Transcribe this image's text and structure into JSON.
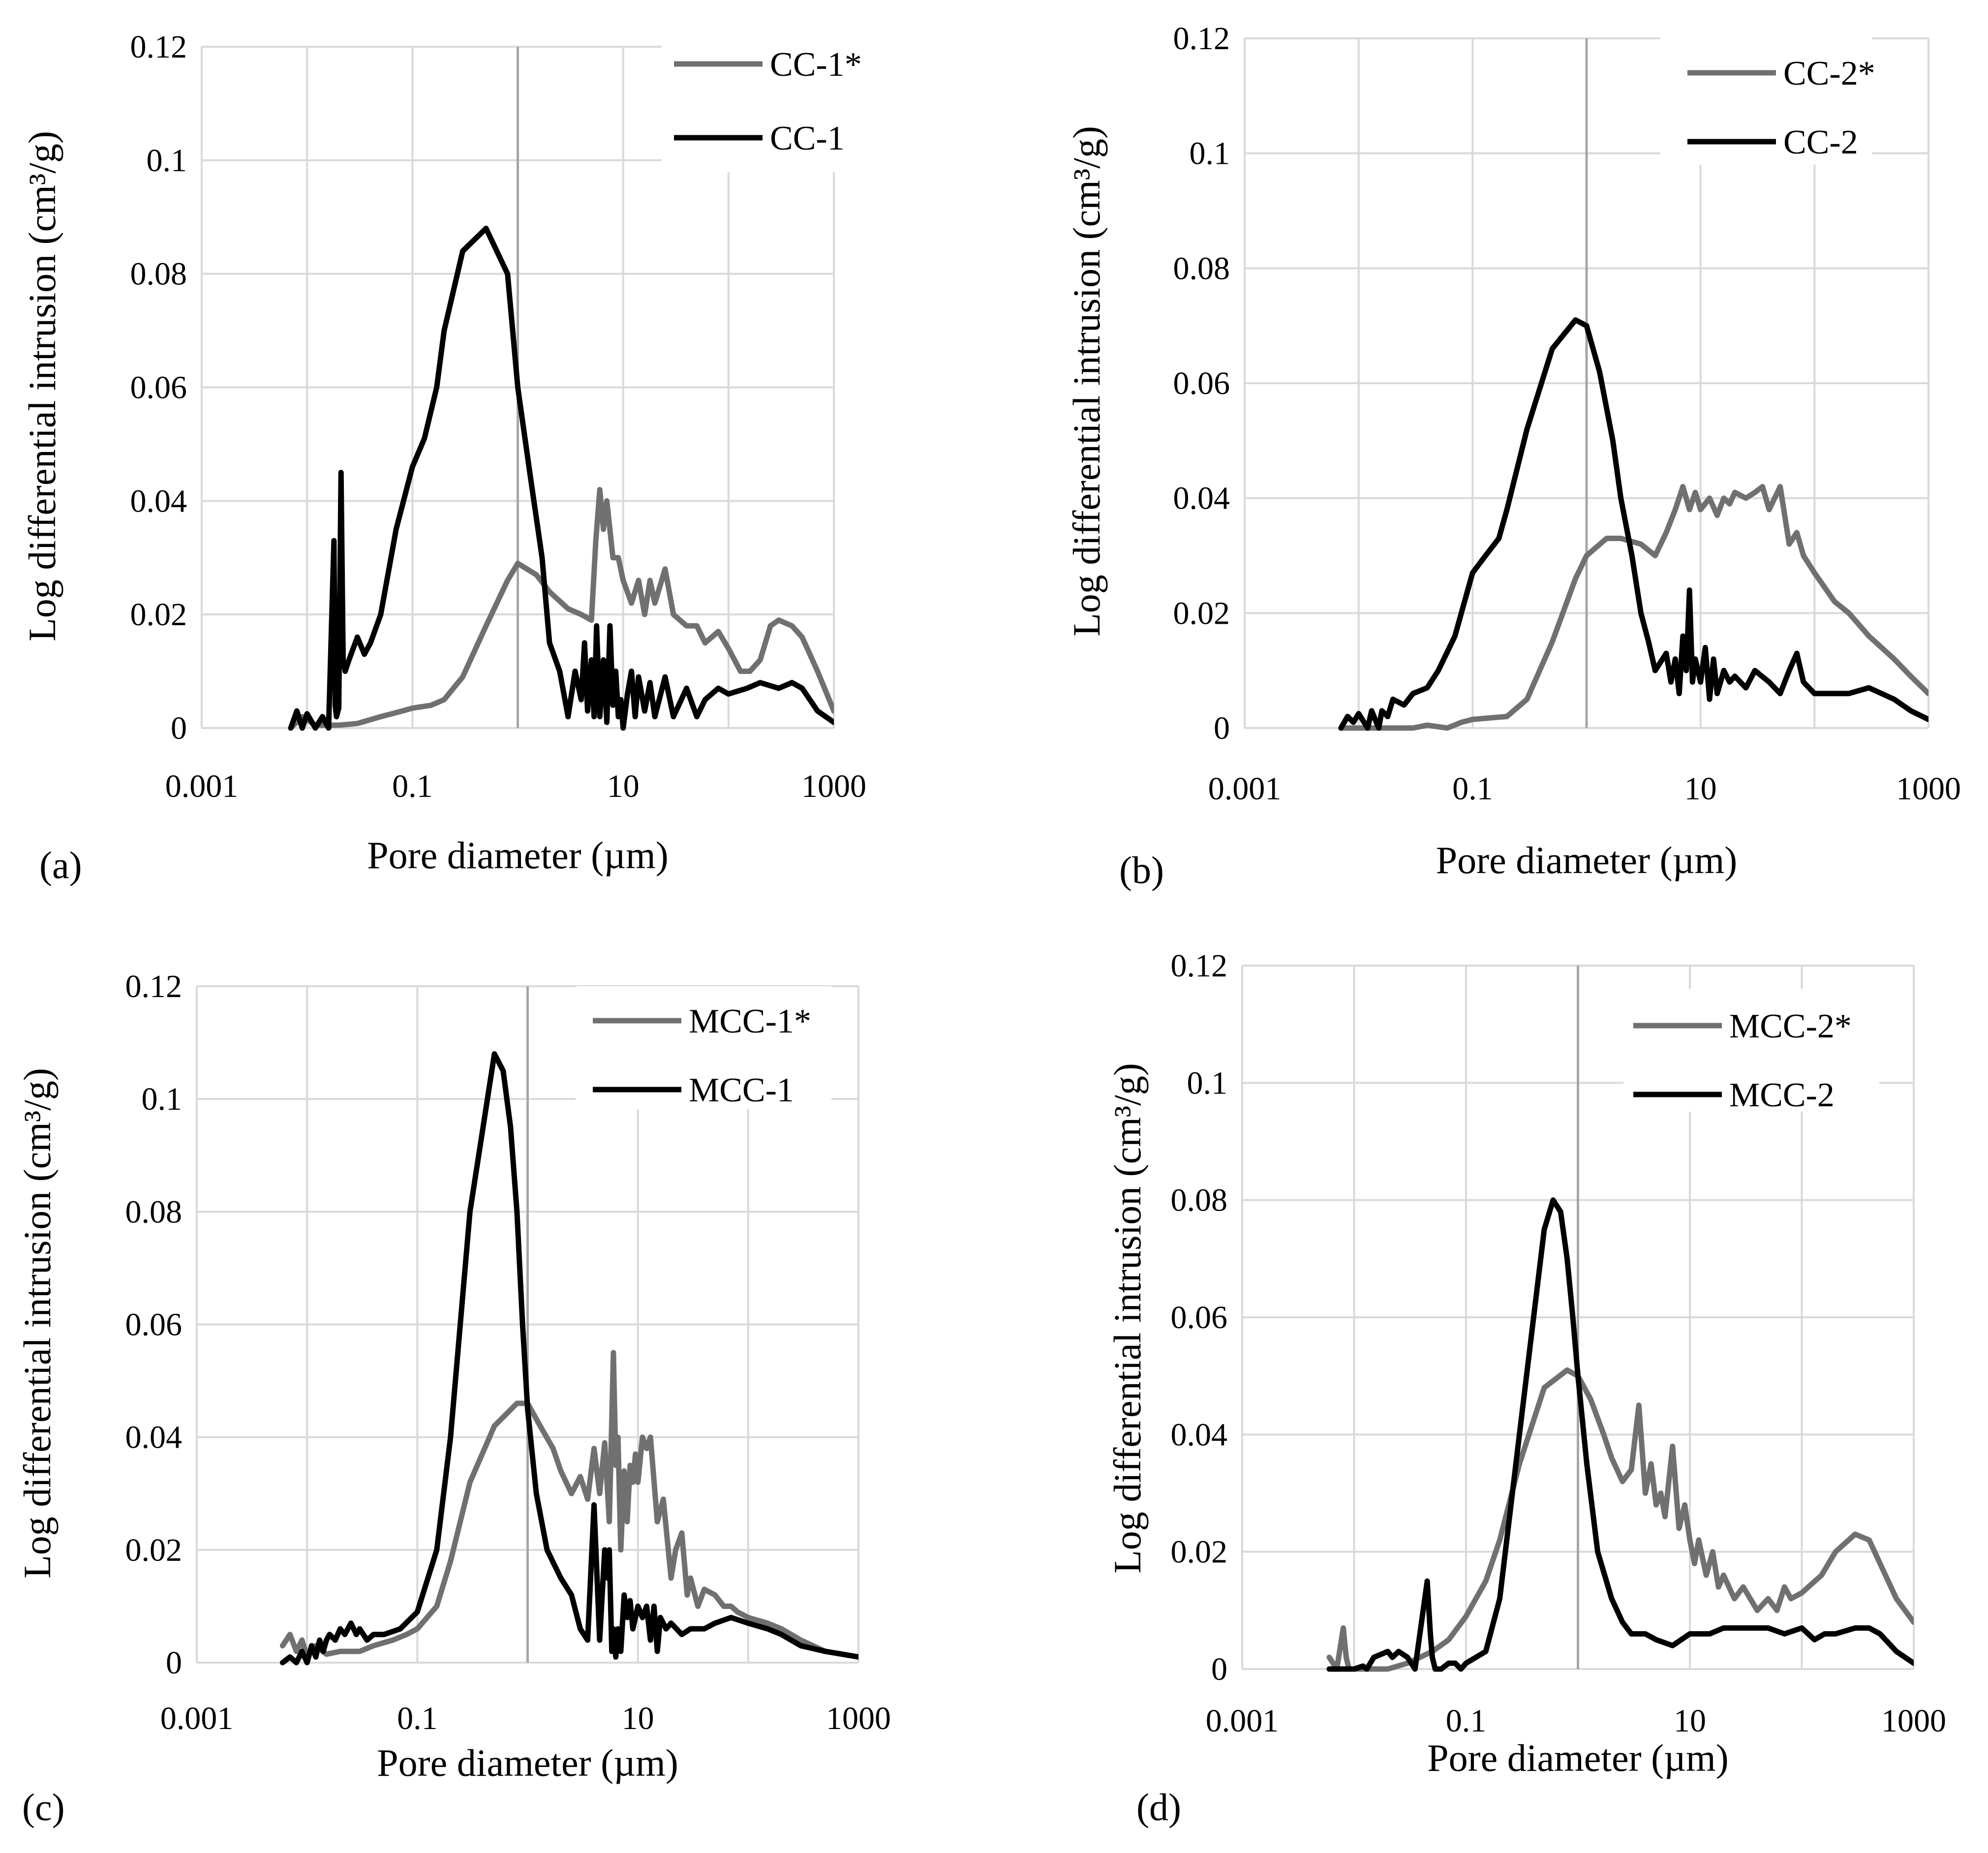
{
  "figure": {
    "panels": [
      "(a)",
      "(b)",
      "(c)",
      "(d)"
    ]
  },
  "colors": {
    "series_star": "#707070",
    "series_plain": "#000000",
    "grid": "#d9d9d9",
    "center_line": "#a6a6a6"
  },
  "chart_data": [
    {
      "type": "line",
      "panel_label": "(a)",
      "xlabel": "Pore diameter (µm)",
      "ylabel": "Log differential intrusion (cm³/g)",
      "x_scale": "log",
      "xlim": [
        0.001,
        1000
      ],
      "x_ticks": [
        "0.001",
        "0.1",
        "10",
        "1000"
      ],
      "ylim": [
        0,
        0.12
      ],
      "y_ticks": [
        "0",
        "0.02",
        "0.04",
        "0.06",
        "0.08",
        "0.1",
        "0.12"
      ],
      "legend_position": "top-right",
      "series": [
        {
          "name": "CC-1*",
          "x": [
            0.007,
            0.009,
            0.012,
            0.02,
            0.03,
            0.05,
            0.08,
            0.1,
            0.15,
            0.2,
            0.3,
            0.5,
            0.8,
            1.0,
            1.5,
            2.0,
            3.0,
            4.0,
            5.0,
            5.5,
            6.0,
            6.5,
            7.0,
            8.0,
            9.0,
            10,
            12,
            14,
            16,
            18,
            20,
            25,
            30,
            40,
            50,
            60,
            80,
            100,
            130,
            160,
            200,
            250,
            300,
            400,
            500,
            700,
            1000
          ],
          "y": [
            0,
            0.002,
            0.0005,
            0.0005,
            0.0008,
            0.002,
            0.003,
            0.0035,
            0.004,
            0.005,
            0.009,
            0.018,
            0.026,
            0.029,
            0.027,
            0.024,
            0.021,
            0.02,
            0.019,
            0.033,
            0.042,
            0.035,
            0.04,
            0.03,
            0.03,
            0.026,
            0.022,
            0.026,
            0.02,
            0.026,
            0.022,
            0.028,
            0.02,
            0.018,
            0.018,
            0.015,
            0.017,
            0.014,
            0.01,
            0.01,
            0.012,
            0.018,
            0.019,
            0.018,
            0.016,
            0.01,
            0.003
          ]
        },
        {
          "name": "CC-1",
          "x": [
            0.007,
            0.008,
            0.009,
            0.01,
            0.012,
            0.014,
            0.016,
            0.018,
            0.0185,
            0.019,
            0.02,
            0.021,
            0.022,
            0.0225,
            0.023,
            0.025,
            0.03,
            0.035,
            0.04,
            0.05,
            0.07,
            0.1,
            0.13,
            0.17,
            0.2,
            0.3,
            0.5,
            0.8,
            1.0,
            1.3,
            1.7,
            2.0,
            2.5,
            3.0,
            3.5,
            4.0,
            4.3,
            4.6,
            5.0,
            5.3,
            5.6,
            6.0,
            6.5,
            7.0,
            7.5,
            8.0,
            8.5,
            9.0,
            9.5,
            10,
            11,
            12,
            13,
            14,
            16,
            18,
            20,
            25,
            30,
            40,
            50,
            60,
            80,
            100,
            150,
            200,
            300,
            400,
            500,
            700,
            1000
          ],
          "y": [
            0,
            0.003,
            0,
            0.0025,
            0,
            0.002,
            0,
            0.033,
            0.004,
            0.002,
            0.0035,
            0.045,
            0.012,
            0.011,
            0.01,
            0.012,
            0.016,
            0.013,
            0.015,
            0.02,
            0.035,
            0.046,
            0.051,
            0.06,
            0.07,
            0.084,
            0.088,
            0.08,
            0.06,
            0.045,
            0.03,
            0.015,
            0.01,
            0.002,
            0.01,
            0.005,
            0.015,
            0.003,
            0.012,
            0.002,
            0.018,
            0.002,
            0.012,
            0.001,
            0.018,
            0.004,
            0.01,
            0.002,
            0.005,
            0,
            0.006,
            0.01,
            0.002,
            0.009,
            0.003,
            0.008,
            0.002,
            0.009,
            0.002,
            0.007,
            0.002,
            0.005,
            0.007,
            0.006,
            0.007,
            0.008,
            0.007,
            0.008,
            0.007,
            0.003,
            0.001
          ]
        }
      ]
    },
    {
      "type": "line",
      "panel_label": "(b)",
      "xlabel": "Pore diameter (µm)",
      "ylabel": "Log differential intrusion (cm³/g)",
      "x_scale": "log",
      "xlim": [
        0.001,
        1000
      ],
      "x_ticks": [
        "0.001",
        "0.1",
        "10",
        "1000"
      ],
      "ylim": [
        0,
        0.12
      ],
      "y_ticks": [
        "0",
        "0.02",
        "0.04",
        "0.06",
        "0.08",
        "0.1",
        "0.12"
      ],
      "legend_position": "top-right",
      "series": [
        {
          "name": "CC-2*",
          "x": [
            0.007,
            0.01,
            0.02,
            0.03,
            0.04,
            0.06,
            0.08,
            0.1,
            0.15,
            0.2,
            0.3,
            0.5,
            0.8,
            1.0,
            1.5,
            2.0,
            3.0,
            4.0,
            5.0,
            6.0,
            7.0,
            8.0,
            9.0,
            10,
            12,
            14,
            16,
            18,
            20,
            25,
            30,
            35,
            40,
            50,
            60,
            70,
            80,
            100,
            150,
            200,
            300,
            500,
            700,
            1000
          ],
          "y": [
            0,
            0,
            0,
            0,
            0.0005,
            0,
            0.001,
            0.0015,
            0.0018,
            0.002,
            0.005,
            0.015,
            0.026,
            0.03,
            0.033,
            0.033,
            0.032,
            0.03,
            0.034,
            0.038,
            0.042,
            0.038,
            0.041,
            0.038,
            0.04,
            0.037,
            0.04,
            0.039,
            0.041,
            0.04,
            0.041,
            0.042,
            0.038,
            0.042,
            0.032,
            0.034,
            0.03,
            0.027,
            0.022,
            0.02,
            0.016,
            0.012,
            0.009,
            0.006
          ]
        },
        {
          "name": "CC-2",
          "x": [
            0.007,
            0.008,
            0.009,
            0.01,
            0.012,
            0.013,
            0.015,
            0.016,
            0.018,
            0.02,
            0.025,
            0.03,
            0.04,
            0.05,
            0.07,
            0.1,
            0.13,
            0.17,
            0.2,
            0.3,
            0.5,
            0.8,
            1.0,
            1.3,
            1.7,
            2.0,
            2.5,
            3.0,
            3.5,
            4.0,
            5.0,
            5.5,
            6.0,
            6.5,
            7.0,
            7.5,
            8.0,
            8.5,
            9.0,
            10,
            11,
            12,
            13,
            14,
            16,
            18,
            20,
            25,
            30,
            40,
            50,
            60,
            70,
            80,
            100,
            150,
            200,
            300,
            500,
            700,
            1000
          ],
          "y": [
            0,
            0.002,
            0.001,
            0.0025,
            0,
            0.003,
            0,
            0.003,
            0.002,
            0.005,
            0.004,
            0.006,
            0.007,
            0.01,
            0.016,
            0.027,
            0.03,
            0.033,
            0.038,
            0.052,
            0.066,
            0.071,
            0.07,
            0.062,
            0.05,
            0.04,
            0.03,
            0.02,
            0.015,
            0.01,
            0.013,
            0.008,
            0.012,
            0.006,
            0.016,
            0.01,
            0.024,
            0.008,
            0.012,
            0.008,
            0.014,
            0.005,
            0.012,
            0.006,
            0.01,
            0.008,
            0.009,
            0.007,
            0.01,
            0.008,
            0.006,
            0.01,
            0.013,
            0.008,
            0.006,
            0.006,
            0.006,
            0.007,
            0.005,
            0.003,
            0.0015
          ]
        }
      ]
    },
    {
      "type": "line",
      "panel_label": "(c)",
      "xlabel": "Pore diameter (µm)",
      "ylabel": "Log differential intrusion (cm³/g)",
      "x_scale": "log",
      "xlim": [
        0.001,
        1000
      ],
      "x_ticks": [
        "0.001",
        "0.1",
        "10",
        "1000"
      ],
      "ylim": [
        0,
        0.12
      ],
      "y_ticks": [
        "0",
        "0.02",
        "0.04",
        "0.06",
        "0.08",
        "0.1",
        "0.12"
      ],
      "legend_position": "top-right",
      "series": [
        {
          "name": "MCC-1*",
          "x": [
            0.006,
            0.007,
            0.008,
            0.009,
            0.01,
            0.012,
            0.015,
            0.02,
            0.03,
            0.04,
            0.06,
            0.08,
            0.1,
            0.15,
            0.2,
            0.3,
            0.5,
            0.8,
            1.0,
            1.3,
            1.7,
            2.0,
            2.5,
            3.0,
            3.5,
            4.0,
            4.5,
            5.0,
            5.5,
            6.0,
            6.3,
            6.6,
            7.0,
            7.5,
            8.0,
            8.5,
            9.0,
            9.5,
            10,
            11,
            12,
            13,
            15,
            17,
            20,
            22,
            25,
            28,
            30,
            35,
            40,
            50,
            60,
            70,
            80,
            100,
            150,
            200,
            300,
            500,
            1000
          ],
          "y": [
            0.003,
            0.005,
            0.002,
            0.004,
            0.001,
            0.003,
            0.0015,
            0.002,
            0.002,
            0.003,
            0.004,
            0.005,
            0.006,
            0.01,
            0.018,
            0.032,
            0.042,
            0.046,
            0.046,
            0.042,
            0.038,
            0.034,
            0.03,
            0.033,
            0.029,
            0.038,
            0.03,
            0.039,
            0.025,
            0.055,
            0.035,
            0.04,
            0.02,
            0.034,
            0.025,
            0.035,
            0.032,
            0.037,
            0.032,
            0.04,
            0.038,
            0.04,
            0.025,
            0.029,
            0.015,
            0.02,
            0.023,
            0.012,
            0.015,
            0.01,
            0.013,
            0.012,
            0.01,
            0.01,
            0.009,
            0.008,
            0.007,
            0.006,
            0.004,
            0.002,
            0.001
          ]
        },
        {
          "name": "MCC-1",
          "x": [
            0.006,
            0.007,
            0.008,
            0.009,
            0.01,
            0.011,
            0.012,
            0.013,
            0.014,
            0.015,
            0.016,
            0.018,
            0.02,
            0.022,
            0.025,
            0.028,
            0.03,
            0.035,
            0.04,
            0.05,
            0.07,
            0.1,
            0.15,
            0.2,
            0.3,
            0.5,
            0.6,
            0.7,
            0.8,
            0.9,
            1.0,
            1.2,
            1.5,
            2.0,
            2.5,
            3.0,
            3.5,
            4.0,
            4.5,
            5.0,
            5.3,
            5.5,
            5.8,
            6.0,
            6.3,
            6.6,
            7.0,
            7.5,
            8.0,
            8.5,
            9.0,
            10,
            11,
            12,
            13,
            14,
            15,
            16,
            18,
            20,
            25,
            30,
            40,
            50,
            70,
            100,
            150,
            200,
            300,
            500,
            1000
          ],
          "y": [
            0,
            0.001,
            0,
            0.002,
            0,
            0.003,
            0.001,
            0.004,
            0.002,
            0.004,
            0.005,
            0.004,
            0.006,
            0.005,
            0.007,
            0.005,
            0.006,
            0.004,
            0.005,
            0.005,
            0.006,
            0.009,
            0.02,
            0.04,
            0.08,
            0.108,
            0.105,
            0.095,
            0.08,
            0.06,
            0.045,
            0.03,
            0.02,
            0.015,
            0.012,
            0.006,
            0.004,
            0.028,
            0.004,
            0.02,
            0.015,
            0.02,
            0.002,
            0.006,
            0.001,
            0.006,
            0.002,
            0.012,
            0.008,
            0.011,
            0.006,
            0.01,
            0.008,
            0.01,
            0.004,
            0.01,
            0.002,
            0.008,
            0.006,
            0.007,
            0.005,
            0.006,
            0.006,
            0.007,
            0.008,
            0.007,
            0.006,
            0.005,
            0.003,
            0.002,
            0.001
          ]
        }
      ]
    },
    {
      "type": "line",
      "panel_label": "(d)",
      "xlabel": "Pore diameter (µm)",
      "ylabel": "Log differential intrusion (cm³/g)",
      "x_scale": "log",
      "xlim": [
        0.001,
        1000
      ],
      "x_ticks": [
        "0.001",
        "0.1",
        "10",
        "1000"
      ],
      "ylim": [
        0,
        0.12
      ],
      "y_ticks": [
        "0",
        "0.02",
        "0.04",
        "0.06",
        "0.08",
        "0.1",
        "0.12"
      ],
      "legend_position": "top-right",
      "series": [
        {
          "name": "MCC-2*",
          "x": [
            0.006,
            0.007,
            0.008,
            0.0085,
            0.009,
            0.01,
            0.015,
            0.02,
            0.03,
            0.05,
            0.07,
            0.1,
            0.15,
            0.2,
            0.3,
            0.5,
            0.8,
            1.0,
            1.3,
            1.7,
            2.0,
            2.5,
            3.0,
            3.5,
            4.0,
            4.5,
            5.0,
            5.5,
            6.0,
            7.0,
            8.0,
            9.0,
            10,
            11,
            12,
            14,
            16,
            18,
            20,
            25,
            30,
            40,
            50,
            60,
            70,
            80,
            100,
            150,
            200,
            300,
            400,
            500,
            700,
            1000
          ],
          "y": [
            0.002,
            0,
            0.007,
            0.002,
            0,
            0,
            0,
            0,
            0.001,
            0.003,
            0.005,
            0.009,
            0.015,
            0.022,
            0.035,
            0.048,
            0.051,
            0.05,
            0.046,
            0.04,
            0.036,
            0.032,
            0.034,
            0.045,
            0.03,
            0.035,
            0.028,
            0.03,
            0.026,
            0.038,
            0.024,
            0.028,
            0.022,
            0.018,
            0.022,
            0.016,
            0.02,
            0.014,
            0.016,
            0.012,
            0.014,
            0.01,
            0.012,
            0.01,
            0.014,
            0.012,
            0.013,
            0.016,
            0.02,
            0.023,
            0.022,
            0.018,
            0.012,
            0.008
          ]
        },
        {
          "name": "MCC-2",
          "x": [
            0.006,
            0.008,
            0.01,
            0.012,
            0.013,
            0.015,
            0.02,
            0.022,
            0.025,
            0.03,
            0.035,
            0.045,
            0.048,
            0.05,
            0.053,
            0.06,
            0.07,
            0.08,
            0.09,
            0.1,
            0.15,
            0.2,
            0.3,
            0.5,
            0.6,
            0.7,
            0.8,
            0.9,
            1.0,
            1.2,
            1.5,
            2.0,
            2.5,
            3.0,
            4.0,
            5.0,
            7.0,
            10,
            15,
            20,
            50,
            70,
            100,
            130,
            160,
            200,
            300,
            400,
            500,
            700,
            1000
          ],
          "y": [
            0,
            0,
            0,
            0.0005,
            0,
            0.002,
            0.003,
            0.002,
            0.003,
            0.002,
            0,
            0.015,
            0.006,
            0.002,
            0,
            0,
            0.001,
            0.001,
            0,
            0.001,
            0.003,
            0.012,
            0.04,
            0.075,
            0.08,
            0.078,
            0.07,
            0.06,
            0.05,
            0.035,
            0.02,
            0.012,
            0.008,
            0.006,
            0.006,
            0.005,
            0.004,
            0.006,
            0.006,
            0.007,
            0.007,
            0.006,
            0.007,
            0.005,
            0.006,
            0.006,
            0.007,
            0.007,
            0.006,
            0.003,
            0.001
          ]
        }
      ]
    }
  ]
}
